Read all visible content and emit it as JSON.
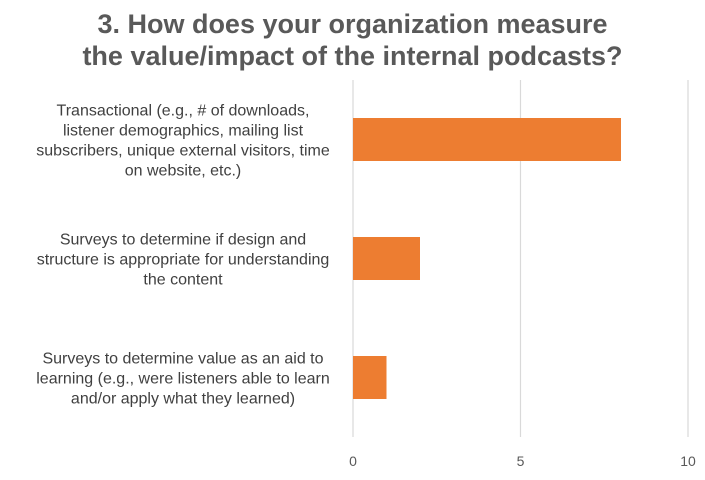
{
  "chart_data": {
    "type": "bar",
    "orientation": "horizontal",
    "title_lines": [
      "3. How does your organization measure",
      "the value/impact of the internal podcasts?"
    ],
    "categories": [
      "Transactional (e.g., # of downloads, listener demographics, mailing list subscribers, unique external visitors, time on website, etc.)",
      "Surveys to determine if design and structure is appropriate for understanding the content",
      "Surveys to determine value as an aid to learning (e.g., were listeners able to learn and/or apply what they learned)"
    ],
    "category_lines": [
      [
        "Transactional (e.g., # of downloads,",
        "listener demographics, mailing list",
        "subscribers, unique external visitors, time",
        "on website, etc.)"
      ],
      [
        "Surveys to determine if design and",
        "structure is appropriate for understanding",
        "the content"
      ],
      [
        "Surveys to determine value as an aid to",
        "learning (e.g., were listeners able to learn",
        "and/or apply what they learned)"
      ]
    ],
    "values": [
      8,
      2,
      1
    ],
    "xlim": [
      0,
      10
    ],
    "xticks": [
      "0",
      "5",
      "10"
    ],
    "grid": true,
    "legend": "none",
    "colors": {
      "bar": "#ED7D31",
      "grid": "#D9D9D9",
      "text": "#404040",
      "title": "#595959"
    }
  }
}
